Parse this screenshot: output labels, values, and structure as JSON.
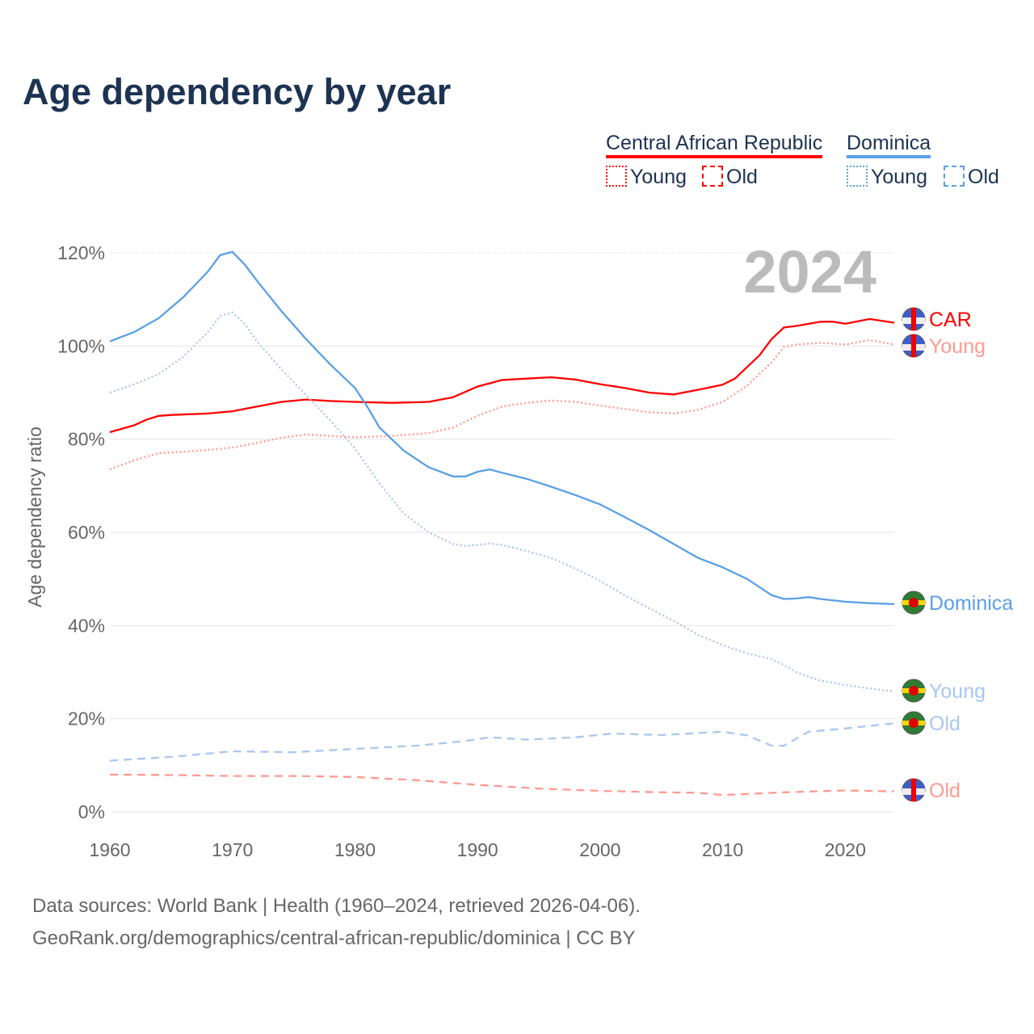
{
  "title": "Age dependency by year",
  "legend": {
    "car": "Central African Republic",
    "dominica": "Dominica",
    "young": "Young",
    "old": "Old"
  },
  "year_label": "2024",
  "sources": [
    "Data sources: World Bank | Health (1960–2024, retrieved 2026-04-06).",
    "GeoRank.org/demographics/central-african-republic/dominica | CC BY"
  ],
  "colors": {
    "car": "#ff0000",
    "car_light": "#ff9a90",
    "dominica": "#5aa0e6",
    "dominica_light": "#a8c8ee"
  },
  "chart_data": {
    "type": "line",
    "title": "Age dependency by year",
    "xlabel": "",
    "ylabel": "Age dependency ratio",
    "xlim": [
      1960,
      2024
    ],
    "ylim": [
      0,
      120
    ],
    "xticks": [
      "1960",
      "1970",
      "1980",
      "1990",
      "2000",
      "2010",
      "2020"
    ],
    "yticks": [
      "0%",
      "20%",
      "40%",
      "60%",
      "80%",
      "100%",
      "120%"
    ],
    "series": [
      {
        "name": "Central African Republic",
        "label": "CAR",
        "style": "solid",
        "color": "#ff0000",
        "x": [
          1960,
          1962,
          1963,
          1964,
          1965,
          1968,
          1970,
          1972,
          1974,
          1976,
          1978,
          1980,
          1983,
          1986,
          1988,
          1990,
          1992,
          1994,
          1996,
          1998,
          2000,
          2002,
          2004,
          2006,
          2008,
          2010,
          2011,
          2012,
          2013,
          2014,
          2015,
          2016,
          2018,
          2019,
          2020,
          2022,
          2024
        ],
        "y": [
          81.5,
          83,
          84.2,
          85,
          85.2,
          85.5,
          86,
          87,
          88,
          88.5,
          88.2,
          88,
          87.8,
          88,
          89,
          91.3,
          92.7,
          93,
          93.3,
          92.8,
          91.8,
          91,
          90,
          89.6,
          90.6,
          91.7,
          93,
          95.5,
          98,
          101.5,
          104,
          104.3,
          105.2,
          105.2,
          104.8,
          105.8,
          105
        ]
      },
      {
        "name": "Central African Republic Young",
        "label": "Young",
        "style": "dotted",
        "color": "#ff9a90",
        "x": [
          1960,
          1962,
          1964,
          1966,
          1968,
          1970,
          1972,
          1974,
          1976,
          1978,
          1980,
          1983,
          1986,
          1988,
          1990,
          1992,
          1994,
          1996,
          1998,
          2000,
          2002,
          2004,
          2006,
          2008,
          2010,
          2012,
          2014,
          2015,
          2016,
          2018,
          2020,
          2022,
          2024
        ],
        "y": [
          73.5,
          75.5,
          77,
          77.3,
          77.7,
          78.2,
          79.2,
          80.3,
          81,
          80.7,
          80.4,
          80.7,
          81.3,
          82.5,
          85,
          87,
          87.8,
          88.3,
          88,
          87.2,
          86.5,
          85.8,
          85.5,
          86.3,
          88,
          91.5,
          96.5,
          99.8,
          100.3,
          100.7,
          100.3,
          101.3,
          100.3
        ]
      },
      {
        "name": "Central African Republic Old",
        "label": "Old",
        "style": "dashed",
        "color": "#ff9a90",
        "x": [
          1960,
          1965,
          1970,
          1975,
          1980,
          1985,
          1990,
          1995,
          2000,
          2005,
          2008,
          2010,
          2015,
          2020,
          2024
        ],
        "y": [
          8,
          7.9,
          7.7,
          7.7,
          7.5,
          6.8,
          5.8,
          5,
          4.5,
          4.2,
          4.1,
          3.6,
          4.2,
          4.6,
          4.4
        ]
      },
      {
        "name": "Dominica",
        "label": "Dominica",
        "style": "solid",
        "color": "#5aa0e6",
        "x": [
          1960,
          1962,
          1964,
          1966,
          1968,
          1969,
          1970,
          1971,
          1972,
          1974,
          1976,
          1978,
          1980,
          1981,
          1982,
          1984,
          1986,
          1988,
          1989,
          1990,
          1991,
          1992,
          1994,
          1996,
          1998,
          2000,
          2002,
          2004,
          2006,
          2008,
          2010,
          2012,
          2014,
          2015,
          2016,
          2017,
          2018,
          2020,
          2022,
          2024
        ],
        "y": [
          101,
          103,
          106,
          110.5,
          116,
          119.5,
          120.2,
          117.5,
          114,
          107.5,
          101.5,
          96,
          91,
          87,
          82.5,
          77.5,
          74,
          72,
          72,
          73,
          73.5,
          72.8,
          71.5,
          69.8,
          68,
          66,
          63.3,
          60.5,
          57.5,
          54.5,
          52.5,
          50,
          46.5,
          45.7,
          45.8,
          46.1,
          45.7,
          45.1,
          44.8,
          44.6
        ]
      },
      {
        "name": "Dominica Young",
        "label": "Young",
        "style": "dotted",
        "color": "#a8c8ee",
        "x": [
          1960,
          1962,
          1964,
          1966,
          1968,
          1969,
          1970,
          1971,
          1972,
          1974,
          1976,
          1978,
          1980,
          1982,
          1984,
          1986,
          1988,
          1989,
          1990,
          1991,
          1992,
          1994,
          1996,
          1998,
          2000,
          2002,
          2004,
          2006,
          2008,
          2010,
          2012,
          2014,
          2015,
          2016,
          2017,
          2018,
          2020,
          2022,
          2024
        ],
        "y": [
          90,
          91.8,
          94,
          97.7,
          103,
          106.5,
          107.2,
          104.8,
          101,
          95,
          89.5,
          84,
          78,
          70.5,
          64,
          60,
          57.5,
          57.1,
          57.3,
          57.6,
          57.3,
          56,
          54.5,
          52.2,
          49.6,
          46.5,
          43.7,
          41,
          38,
          35.8,
          34,
          32.8,
          31.5,
          30,
          29,
          28.2,
          27.2,
          26.5,
          25.8
        ]
      },
      {
        "name": "Dominica Old",
        "label": "Old",
        "style": "dashed",
        "color": "#a8c8ee",
        "x": [
          1960,
          1965,
          1970,
          1975,
          1980,
          1985,
          1989,
          1991,
          1994,
          1998,
          2001,
          2005,
          2010,
          2012,
          2014,
          2015,
          2017,
          2020,
          2024
        ],
        "y": [
          11,
          11.8,
          13,
          12.8,
          13.5,
          14.2,
          15.2,
          16,
          15.5,
          16,
          16.8,
          16.5,
          17.2,
          16.4,
          14.2,
          14.2,
          17.2,
          17.9,
          19
        ]
      }
    ]
  }
}
